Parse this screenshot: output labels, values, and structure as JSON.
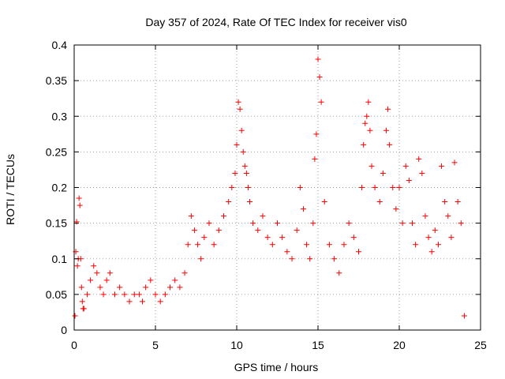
{
  "chart_data": {
    "type": "scatter",
    "title": "Day 357 of 2024, Rate Of TEC Index for receiver vis0",
    "xlabel": "GPS time / hours",
    "ylabel": "ROTI / TECUs",
    "xlim": [
      0,
      25
    ],
    "ylim": [
      0,
      0.4
    ],
    "xticks": [
      0,
      5,
      10,
      15,
      20,
      25
    ],
    "yticks": [
      0,
      0.05,
      0.1,
      0.15,
      0.2,
      0.25,
      0.3,
      0.35,
      0.4
    ],
    "ytick_labels": [
      "0",
      "0.05",
      "0.1",
      "0.15",
      "0.2",
      "0.25",
      "0.3",
      "0.35",
      "0.4"
    ],
    "grid": true,
    "marker": "+",
    "series": [
      {
        "name": "vis0",
        "color": "#ff0000",
        "x": [
          0.05,
          0.1,
          0.15,
          0.2,
          0.25,
          0.3,
          0.35,
          0.4,
          0.45,
          0.5,
          0.55,
          0.6,
          0.8,
          1.0,
          1.2,
          1.4,
          1.6,
          1.8,
          2.0,
          2.2,
          2.5,
          2.8,
          3.1,
          3.4,
          3.7,
          4.0,
          4.2,
          4.4,
          4.7,
          5.0,
          5.3,
          5.6,
          5.9,
          6.2,
          6.5,
          6.8,
          7.0,
          7.2,
          7.4,
          7.6,
          7.8,
          8.0,
          8.3,
          8.6,
          8.9,
          9.2,
          9.5,
          9.7,
          9.9,
          10.0,
          10.1,
          10.2,
          10.3,
          10.4,
          10.5,
          10.6,
          10.7,
          10.8,
          11.0,
          11.3,
          11.6,
          11.9,
          12.2,
          12.5,
          12.8,
          13.1,
          13.4,
          13.7,
          13.9,
          14.1,
          14.3,
          14.5,
          14.7,
          14.8,
          14.9,
          15.0,
          15.1,
          15.2,
          15.4,
          15.7,
          16.0,
          16.3,
          16.6,
          16.9,
          17.2,
          17.5,
          17.7,
          17.8,
          17.9,
          18.0,
          18.1,
          18.2,
          18.3,
          18.5,
          18.8,
          19.0,
          19.2,
          19.3,
          19.4,
          19.6,
          19.8,
          20.0,
          20.2,
          20.4,
          20.6,
          20.8,
          21.0,
          21.2,
          21.4,
          21.6,
          21.8,
          22.0,
          22.2,
          22.4,
          22.6,
          22.8,
          23.0,
          23.2,
          23.4,
          23.6,
          23.8,
          24.0
        ],
        "y": [
          0.02,
          0.11,
          0.152,
          0.09,
          0.1,
          0.185,
          0.175,
          0.1,
          0.06,
          0.04,
          0.03,
          0.03,
          0.05,
          0.07,
          0.09,
          0.08,
          0.06,
          0.05,
          0.07,
          0.08,
          0.05,
          0.06,
          0.05,
          0.04,
          0.05,
          0.05,
          0.04,
          0.06,
          0.07,
          0.05,
          0.04,
          0.05,
          0.06,
          0.07,
          0.06,
          0.08,
          0.12,
          0.16,
          0.14,
          0.12,
          0.1,
          0.13,
          0.15,
          0.12,
          0.14,
          0.16,
          0.18,
          0.2,
          0.22,
          0.26,
          0.32,
          0.31,
          0.28,
          0.25,
          0.23,
          0.22,
          0.2,
          0.18,
          0.15,
          0.14,
          0.16,
          0.13,
          0.12,
          0.15,
          0.13,
          0.11,
          0.1,
          0.14,
          0.2,
          0.17,
          0.12,
          0.1,
          0.15,
          0.24,
          0.275,
          0.38,
          0.355,
          0.32,
          0.18,
          0.12,
          0.1,
          0.08,
          0.12,
          0.15,
          0.13,
          0.11,
          0.2,
          0.26,
          0.29,
          0.3,
          0.32,
          0.28,
          0.23,
          0.2,
          0.18,
          0.22,
          0.28,
          0.31,
          0.26,
          0.2,
          0.17,
          0.2,
          0.15,
          0.23,
          0.21,
          0.15,
          0.12,
          0.24,
          0.22,
          0.16,
          0.13,
          0.11,
          0.14,
          0.12,
          0.23,
          0.18,
          0.16,
          0.13,
          0.235,
          0.18,
          0.15,
          0.02
        ]
      }
    ]
  }
}
